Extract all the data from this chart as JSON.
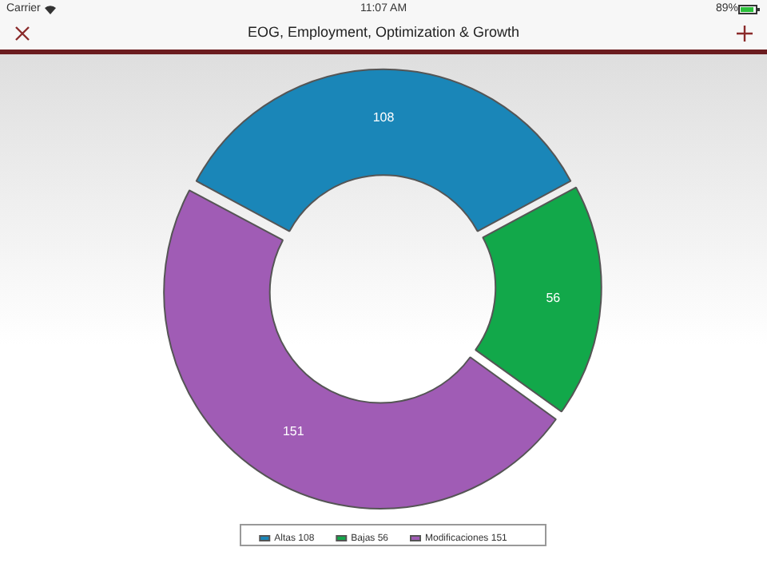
{
  "chart_data": {
    "type": "donut",
    "title": "EOG, Employment, Optimization & Growth",
    "categories": [
      "Altas 108",
      "Bajas 56",
      "Modificaciones 151"
    ],
    "values": [
      108,
      56,
      151
    ],
    "colors": [
      "#1a86b8",
      "#12a84a",
      "#a05cb5"
    ],
    "data_labels": true,
    "legend": "bottom",
    "annotations": [
      "Carrier",
      "11:07 AM",
      "89%"
    ]
  }
}
